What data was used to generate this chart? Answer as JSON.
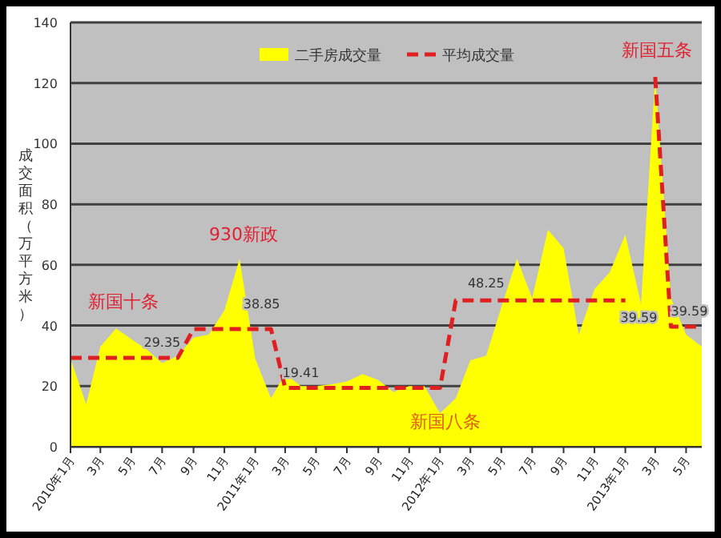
{
  "chart_data": {
    "type": "area",
    "ylabel": "成交面积（万平方米）",
    "x": [
      "2010-01",
      "2010-02",
      "2010-03",
      "2010-04",
      "2010-05",
      "2010-06",
      "2010-07",
      "2010-08",
      "2010-09",
      "2010-10",
      "2010-11",
      "2010-12",
      "2011-01",
      "2011-02",
      "2011-03",
      "2011-04",
      "2011-05",
      "2011-06",
      "2011-07",
      "2011-08",
      "2011-09",
      "2011-10",
      "2011-11",
      "2011-12",
      "2012-01",
      "2012-02",
      "2012-03",
      "2012-04",
      "2012-05",
      "2012-06",
      "2012-07",
      "2012-08",
      "2012-09",
      "2012-10",
      "2012-11",
      "2012-12",
      "2013-01",
      "2013-02",
      "2013-03",
      "2013-04",
      "2013-05",
      "2013-06"
    ],
    "series": [
      {
        "name": "二手房成交量",
        "color": "#ffff00",
        "values": [
          29,
          14,
          33,
          39,
          35.5,
          32,
          27.6,
          30,
          36,
          37,
          45,
          62,
          29,
          16,
          24,
          20,
          20,
          20.6,
          21.5,
          24,
          22,
          18,
          20,
          20,
          11,
          16,
          28.5,
          30,
          46,
          62,
          49,
          71.6,
          65.5,
          37,
          52,
          57.5,
          70,
          47,
          122,
          49,
          37,
          33
        ]
      },
      {
        "name": "平均成交量",
        "type": "line",
        "color": "#e02020",
        "line_style": "dashed",
        "values": [
          29.35,
          29.35,
          29.35,
          29.35,
          29.35,
          29.35,
          29.35,
          29.35,
          38.85,
          38.85,
          38.85,
          38.85,
          38.85,
          38.85,
          19.41,
          19.41,
          19.41,
          19.41,
          19.41,
          19.41,
          19.41,
          19.41,
          19.41,
          19.41,
          19.41,
          48.25,
          48.25,
          48.25,
          48.25,
          48.25,
          48.25,
          48.25,
          48.25,
          48.25,
          48.25,
          48.25,
          48.25,
          null,
          122,
          39.59,
          39.59,
          39.59
        ],
        "value_labels": [
          null,
          null,
          null,
          null,
          null,
          null,
          "29.35",
          null,
          null,
          null,
          null,
          null,
          "38.85",
          null,
          null,
          "19.41",
          null,
          null,
          null,
          null,
          null,
          null,
          null,
          null,
          null,
          null,
          null,
          "48.25",
          null,
          null,
          null,
          null,
          null,
          null,
          null,
          null,
          null,
          null,
          null,
          "39.59",
          "39.59",
          null
        ]
      }
    ],
    "xlim": [
      "2010-01",
      "2013-06"
    ],
    "xticks": [
      {
        "value": "2010-01",
        "label": "2010年1月"
      },
      {
        "value": "2010-03",
        "label": "3月"
      },
      {
        "value": "2010-05",
        "label": "5月"
      },
      {
        "value": "2010-07",
        "label": "7月"
      },
      {
        "value": "2010-09",
        "label": "9月"
      },
      {
        "value": "2010-11",
        "label": "11月"
      },
      {
        "value": "2011-01",
        "label": "2011年1月"
      },
      {
        "value": "2011-03",
        "label": "3月"
      },
      {
        "value": "2011-05",
        "label": "5月"
      },
      {
        "value": "2011-07",
        "label": "7月"
      },
      {
        "value": "2011-09",
        "label": "9月"
      },
      {
        "value": "2011-11",
        "label": "11月"
      },
      {
        "value": "2012-01",
        "label": "2012年1月"
      },
      {
        "value": "2012-03",
        "label": "3月"
      },
      {
        "value": "2012-05",
        "label": "5月"
      },
      {
        "value": "2012-07",
        "label": "7月"
      },
      {
        "value": "2012-09",
        "label": "9月"
      },
      {
        "value": "2012-11",
        "label": "11月"
      },
      {
        "value": "2013-01",
        "label": "2013年1月"
      },
      {
        "value": "2013-03",
        "label": "3月"
      },
      {
        "value": "2013-05",
        "label": "5月"
      }
    ],
    "ylim": [
      0,
      140
    ],
    "yticks": [
      0,
      20,
      40,
      60,
      80,
      100,
      120,
      140
    ],
    "grid": "y",
    "legend": "top",
    "annotations": [
      "新国十条",
      "930新政",
      "新国八条",
      "新国五条"
    ]
  }
}
